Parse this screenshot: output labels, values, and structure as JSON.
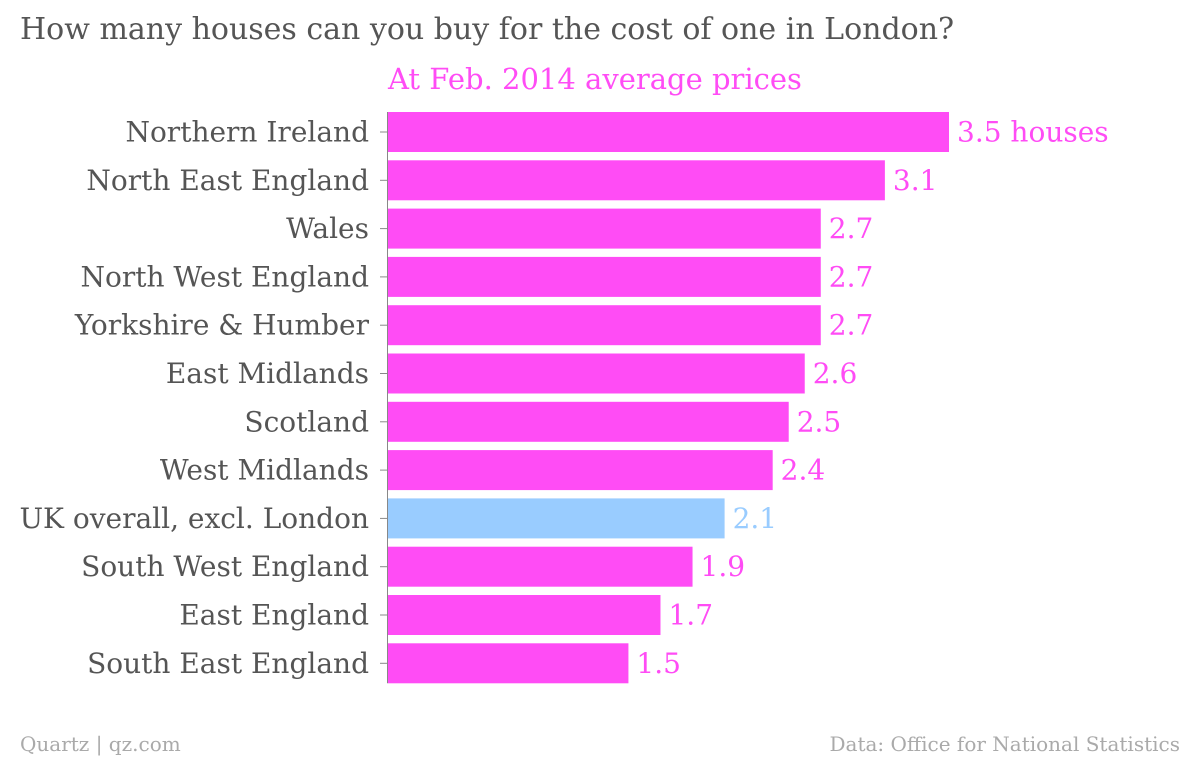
{
  "header": {
    "title": "How many houses can you buy for the cost of one in London?",
    "subtitle": "At Feb. 2014 average prices"
  },
  "footer": {
    "credit": "Quartz | qz.com",
    "source": "Data: Office for National Statistics"
  },
  "colors": {
    "bar": "#ff4cf5",
    "highlight": "#99ccff",
    "label_text": "#555555",
    "axis": "#888888"
  },
  "chart_data": {
    "type": "bar",
    "orientation": "horizontal",
    "title": "How many houses can you buy for the cost of one in London?",
    "subtitle": "At Feb. 2014 average prices",
    "xlabel": "",
    "ylabel": "",
    "xlim": [
      0,
      3.5
    ],
    "grid": false,
    "legend": "none",
    "categories": [
      "Northern Ireland",
      "North East England",
      "Wales",
      "North West England",
      "Yorkshire & Humber",
      "East Midlands",
      "Scotland",
      "West Midlands",
      "UK overall, excl. London",
      "South West England",
      "East England",
      "South East England"
    ],
    "values": [
      3.5,
      3.1,
      2.7,
      2.7,
      2.7,
      2.6,
      2.5,
      2.4,
      2.1,
      1.9,
      1.7,
      1.5
    ],
    "data_labels": [
      "3.5 houses",
      "3.1",
      "2.7",
      "2.7",
      "2.7",
      "2.6",
      "2.5",
      "2.4",
      "2.1",
      "1.9",
      "1.7",
      "1.5"
    ],
    "highlight_category": "UK overall, excl. London"
  }
}
